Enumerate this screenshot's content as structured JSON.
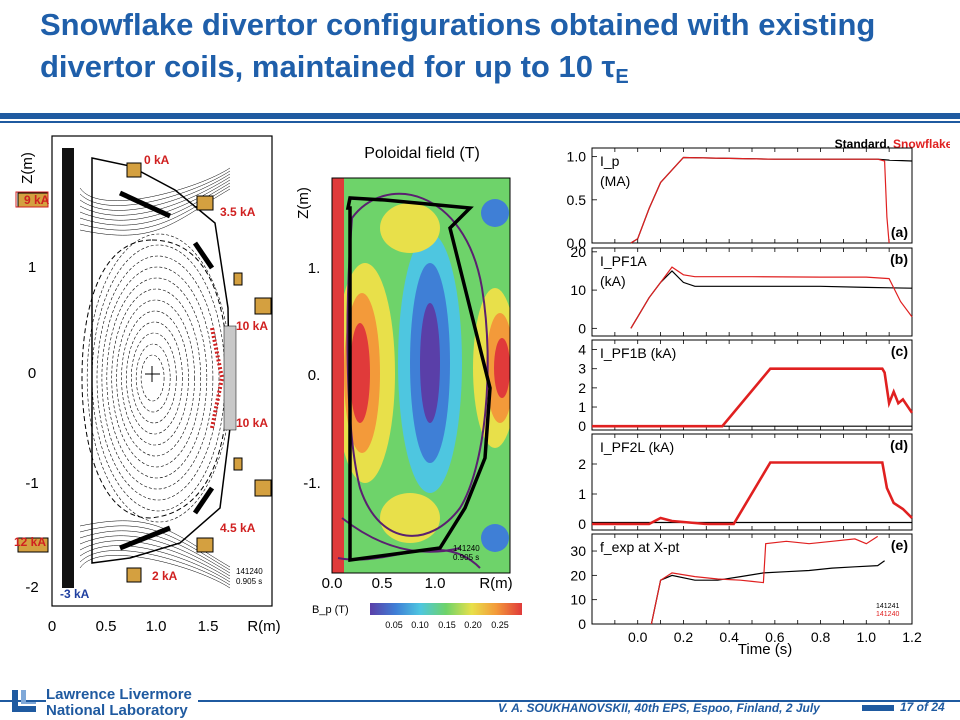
{
  "slide": {
    "title": "Snowflake divertor configurations obtained with existing divertor coils, maintained for up to 10 τ",
    "title_sub": "E",
    "footer": {
      "lab_line1": "Lawrence Livermore",
      "lab_line2": "National Laboratory",
      "citation": "V. A. SOUKHANOVSKII, 40th EPS, Espoo, Finland, 2 July",
      "page": "17 of 24"
    }
  },
  "equilibrium": {
    "ylabel": "Z(m)",
    "xlabel": "R(m)",
    "xticks": [
      "0",
      "0.5",
      "1.0",
      "1.5"
    ],
    "yticks": [
      "1",
      "0",
      "-1",
      "-2"
    ],
    "shot": "141240",
    "time": "0.905 s",
    "coil_currents": [
      "0 kA",
      "9 kA",
      "3.5 kA",
      "10 kA",
      "10 kA",
      "4.5 kA",
      "12 kA",
      "2 kA",
      "-3 kA"
    ]
  },
  "poloidal_field": {
    "title": "Poloidal field (T)",
    "ylabel": "Z(m)",
    "xlabel": "R(m)",
    "xticks": [
      "0.0",
      "0.5",
      "1.0"
    ],
    "yticks": [
      "1.",
      "0.",
      "-1."
    ],
    "shot": "141240",
    "time": "0.905 s",
    "colorbar_label": "B_p (T)",
    "colorbar_ticks": [
      "0.05",
      "0.10",
      "0.15",
      "0.20",
      "0.25"
    ],
    "colors": [
      "#5a3fa8",
      "#3f7fd6",
      "#4ec6e0",
      "#6ed36a",
      "#e8e04a",
      "#f39a3a",
      "#e03a3a"
    ]
  },
  "chart_data": {
    "type": "line",
    "legend": {
      "standard": "Standard,",
      "snowflake": "Snowflake",
      "placement": "top-right"
    },
    "xlabel": "Time (s)",
    "xlim": [
      -0.2,
      1.2
    ],
    "xticks": [
      "0.0",
      "0.2",
      "0.4",
      "0.6",
      "0.8",
      "1.0",
      "1.2"
    ],
    "colors": {
      "standard": "#000000",
      "snowflake": "#e02020"
    },
    "panels": [
      {
        "id": "a",
        "tag": "(a)",
        "label_line1": "I_p",
        "label_line2": "(MA)",
        "ylim": [
          0,
          1.1
        ],
        "yticks": [
          "1.0",
          "0.5",
          "0.0"
        ],
        "ytick_values": [
          1.0,
          0.5,
          0.0
        ],
        "series": [
          {
            "key": "standard",
            "x": [
              -0.03,
              0.0,
              0.05,
              0.1,
              0.2,
              0.4,
              0.6,
              0.8,
              1.0,
              1.05,
              1.1,
              1.2
            ],
            "y": [
              0.0,
              0.05,
              0.4,
              0.7,
              0.99,
              0.98,
              0.97,
              0.97,
              0.97,
              0.97,
              0.96,
              0.95
            ]
          },
          {
            "key": "snowflake",
            "x": [
              -0.03,
              0.0,
              0.05,
              0.1,
              0.2,
              0.4,
              0.6,
              0.8,
              1.0,
              1.05,
              1.08,
              1.09,
              1.1
            ],
            "y": [
              0.0,
              0.05,
              0.4,
              0.7,
              0.99,
              0.98,
              0.97,
              0.97,
              0.97,
              0.97,
              0.95,
              0.3,
              0.0
            ]
          }
        ]
      },
      {
        "id": "b",
        "tag": "(b)",
        "label_line1": "I_PF1A",
        "label_line2": "(kA)",
        "ylim": [
          -2,
          21
        ],
        "yticks": [
          "20",
          "10",
          "0"
        ],
        "ytick_values": [
          20,
          10,
          0
        ],
        "series": [
          {
            "key": "standard",
            "x": [
              -0.03,
              0.05,
              0.1,
              0.15,
              0.2,
              0.25,
              0.3,
              0.5,
              0.8,
              1.0,
              1.2
            ],
            "y": [
              0.0,
              8.0,
              12.0,
              15.0,
              12.0,
              11.0,
              11.0,
              11.0,
              11.0,
              10.7,
              10.5
            ]
          },
          {
            "key": "snowflake",
            "x": [
              -0.03,
              0.05,
              0.1,
              0.15,
              0.2,
              0.25,
              0.3,
              0.5,
              0.8,
              1.0,
              1.1,
              1.15,
              1.2
            ],
            "y": [
              0.0,
              8.0,
              12.0,
              16.0,
              14.0,
              13.5,
              13.5,
              13.5,
              13.4,
              13.4,
              13.0,
              7.0,
              3.0
            ]
          }
        ]
      },
      {
        "id": "c",
        "tag": "(c)",
        "label_line1": "I_PF1B (kA)",
        "label_line2": "",
        "ylim": [
          -0.2,
          4.5
        ],
        "yticks": [
          "4",
          "3",
          "2",
          "1",
          "0"
        ],
        "ytick_values": [
          4,
          3,
          2,
          1,
          0
        ],
        "series": [
          {
            "key": "standard",
            "x": [
              -0.2,
              1.2
            ],
            "y": [
              0.0,
              0.0
            ]
          },
          {
            "key": "snowflake",
            "x": [
              -0.2,
              0.37,
              0.58,
              1.07,
              1.08,
              1.1,
              1.12,
              1.14,
              1.16,
              1.2
            ],
            "y": [
              0.0,
              0.0,
              3.0,
              3.0,
              2.8,
              1.2,
              1.8,
              1.2,
              1.4,
              0.7
            ]
          }
        ]
      },
      {
        "id": "d",
        "tag": "(d)",
        "label_line1": "I_PF2L (kA)",
        "label_line2": "",
        "ylim": [
          -0.2,
          3.0
        ],
        "yticks": [
          "2",
          "1",
          "0"
        ],
        "ytick_values": [
          2,
          1,
          0
        ],
        "series": [
          {
            "key": "standard",
            "x": [
              -0.2,
              1.2
            ],
            "y": [
              0.05,
              0.05
            ]
          },
          {
            "key": "snowflake",
            "x": [
              -0.2,
              0.05,
              0.1,
              0.15,
              0.3,
              0.42,
              0.58,
              1.07,
              1.09,
              1.12,
              1.16,
              1.2
            ],
            "y": [
              0.0,
              0.0,
              0.2,
              0.1,
              0.0,
              0.0,
              2.05,
              2.05,
              1.2,
              0.7,
              0.5,
              0.2
            ]
          }
        ]
      },
      {
        "id": "e",
        "tag": "(e)",
        "label_line1": "f_exp at X-pt",
        "label_line2": "",
        "ylim": [
          0,
          37
        ],
        "yticks": [
          "30",
          "20",
          "10",
          "0"
        ],
        "ytick_values": [
          30,
          20,
          10,
          0
        ],
        "shots": {
          "standard": "141241",
          "snowflake": "141240"
        },
        "series": [
          {
            "key": "standard",
            "x": [
              0.06,
              0.1,
              0.15,
              0.25,
              0.35,
              0.45,
              0.55,
              0.65,
              0.75,
              0.85,
              0.95,
              1.05,
              1.08
            ],
            "y": [
              0.0,
              18.0,
              20.0,
              18.0,
              18.0,
              19.5,
              21.0,
              21.5,
              22.0,
              23.0,
              23.5,
              24.0,
              26.0
            ]
          },
          {
            "key": "snowflake",
            "x": [
              0.06,
              0.1,
              0.15,
              0.25,
              0.35,
              0.45,
              0.5,
              0.55,
              0.56,
              0.65,
              0.75,
              0.85,
              0.95,
              1.0,
              1.05
            ],
            "y": [
              0.0,
              18.0,
              21.0,
              19.5,
              18.5,
              18.0,
              17.5,
              17.0,
              33.0,
              34.0,
              33.0,
              34.0,
              35.0,
              33.0,
              36.0
            ]
          }
        ]
      }
    ]
  }
}
